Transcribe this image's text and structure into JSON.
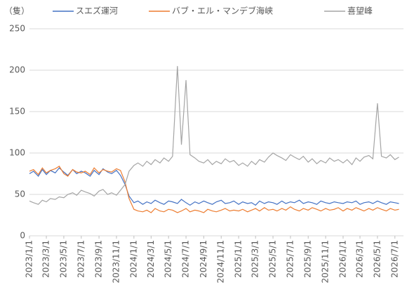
{
  "chart_data": {
    "type": "line",
    "y_axis_label": "（隻）",
    "x": [
      "2023/1/1",
      "2023/1/15",
      "2023/2/1",
      "2023/2/15",
      "2023/3/1",
      "2023/3/15",
      "2023/4/1",
      "2023/4/15",
      "2023/5/1",
      "2023/5/15",
      "2023/6/1",
      "2023/6/15",
      "2023/7/1",
      "2023/7/15",
      "2023/8/1",
      "2023/8/15",
      "2023/9/1",
      "2023/9/15",
      "2023/10/1",
      "2023/10/15",
      "2023/11/1",
      "2023/11/15",
      "2023/12/1",
      "2023/12/15",
      "2024/1/1",
      "2024/1/15",
      "2024/2/1",
      "2024/2/15",
      "2024/3/1",
      "2024/3/15",
      "2024/4/1",
      "2024/4/15",
      "2024/5/1",
      "2024/5/15",
      "2024/6/1",
      "2024/6/15",
      "2024/7/1",
      "2024/7/15",
      "2024/8/1",
      "2024/8/15",
      "2024/9/1",
      "2024/9/15",
      "2024/10/1",
      "2024/10/15",
      "2024/11/1",
      "2024/11/15",
      "2024/12/1",
      "2024/12/15",
      "2025/1/1",
      "2025/1/15",
      "2025/2/1",
      "2025/2/15",
      "2025/3/1",
      "2025/3/15",
      "2025/4/1",
      "2025/4/15",
      "2025/5/1",
      "2025/5/15",
      "2025/6/1",
      "2025/6/15",
      "2025/7/1",
      "2025/7/15",
      "2025/8/1",
      "2025/8/15",
      "2025/9/1",
      "2025/9/15",
      "2025/10/1",
      "2025/10/15",
      "2025/11/1",
      "2025/11/15",
      "2025/12/1",
      "2025/12/15",
      "2026/1/1",
      "2026/1/15",
      "2026/2/1",
      "2026/2/15",
      "2026/3/1",
      "2026/3/15",
      "2026/4/1",
      "2026/4/15",
      "2026/5/1",
      "2026/5/15",
      "2026/6/1",
      "2026/6/15",
      "2026/7/1",
      "2026/7/15"
    ],
    "series": [
      {
        "name": "スエズ運河",
        "color": "#4472c4",
        "values": [
          75,
          78,
          72,
          80,
          74,
          79,
          76,
          82,
          77,
          73,
          80,
          75,
          78,
          76,
          72,
          79,
          74,
          81,
          77,
          75,
          79,
          73,
          62,
          48,
          40,
          42,
          38,
          41,
          39,
          43,
          40,
          38,
          42,
          41,
          39,
          44,
          40,
          37,
          41,
          39,
          42,
          40,
          38,
          41,
          43,
          39,
          40,
          42,
          38,
          41,
          39,
          40,
          37,
          42,
          39,
          41,
          40,
          38,
          42,
          39,
          41,
          40,
          43,
          39,
          41,
          40,
          38,
          42,
          40,
          39,
          41,
          40,
          39,
          41,
          40,
          42,
          38,
          40,
          41,
          39,
          42,
          40,
          38,
          41,
          40,
          39
        ]
      },
      {
        "name": "バブ・エル・マンデブ海峡",
        "color": "#ed7d31",
        "values": [
          78,
          80,
          74,
          82,
          76,
          79,
          81,
          84,
          75,
          72,
          80,
          77,
          76,
          78,
          74,
          82,
          76,
          80,
          78,
          77,
          81,
          79,
          65,
          45,
          32,
          30,
          29,
          31,
          28,
          33,
          30,
          29,
          32,
          31,
          28,
          30,
          33,
          29,
          31,
          30,
          28,
          32,
          30,
          29,
          31,
          33,
          30,
          31,
          30,
          32,
          29,
          31,
          33,
          30,
          34,
          31,
          32,
          30,
          33,
          31,
          35,
          32,
          30,
          33,
          31,
          34,
          32,
          30,
          33,
          31,
          32,
          34,
          30,
          33,
          31,
          34,
          32,
          30,
          33,
          31,
          34,
          32,
          30,
          33,
          31,
          32
        ]
      },
      {
        "name": "喜望峰",
        "color": "#a5a5a5",
        "values": [
          42,
          40,
          38,
          43,
          41,
          45,
          44,
          47,
          46,
          50,
          52,
          49,
          55,
          53,
          51,
          48,
          54,
          56,
          50,
          52,
          49,
          55,
          62,
          78,
          85,
          88,
          84,
          90,
          86,
          92,
          88,
          94,
          90,
          96,
          205,
          110,
          188,
          98,
          94,
          90,
          88,
          92,
          86,
          90,
          87,
          93,
          89,
          91,
          85,
          88,
          84,
          90,
          86,
          92,
          89,
          95,
          100,
          97,
          94,
          91,
          98,
          95,
          92,
          96,
          89,
          93,
          87,
          91,
          88,
          94,
          90,
          92,
          88,
          92,
          86,
          94,
          90,
          95,
          97,
          93,
          160,
          96,
          94,
          98,
          92,
          95
        ]
      }
    ],
    "xlim": [
      "2023/1/1",
      "2026/7/31"
    ],
    "xticks": [
      "2023/1/1",
      "2023/3/1",
      "2023/5/1",
      "2023/7/1",
      "2023/9/1",
      "2023/11/1",
      "2024/1/1",
      "2024/3/1",
      "2024/5/1",
      "2024/7/1",
      "2024/9/1",
      "2024/11/1",
      "2025/1/1",
      "2025/3/1",
      "2025/5/1",
      "2025/7/1",
      "2025/9/1",
      "2025/11/1",
      "2026/1/1",
      "2026/3/1",
      "2026/5/1",
      "2026/7/1"
    ],
    "ylim": [
      0,
      250
    ],
    "yticks": [
      0,
      50,
      100,
      150,
      200,
      250
    ],
    "grid": true
  }
}
